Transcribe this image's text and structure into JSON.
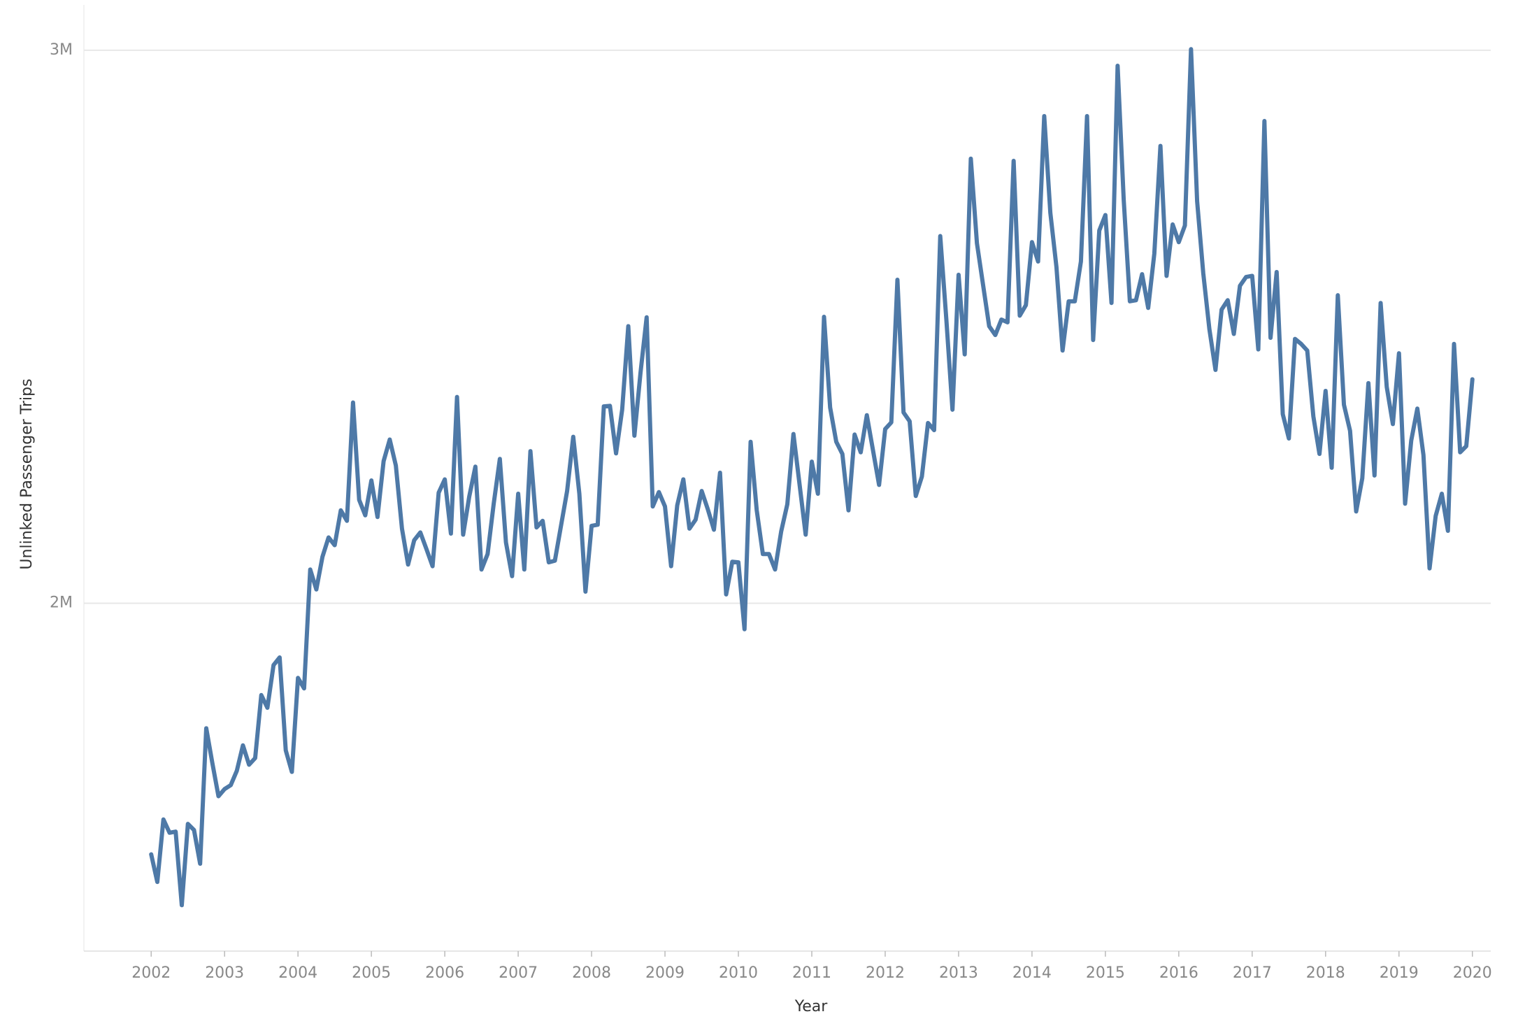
{
  "chart_data": {
    "type": "line",
    "x_label": "Year",
    "y_label": "Unlinked Passenger Trips",
    "color": "#4e79a7",
    "grid": true,
    "xlim": [
      "2001-02",
      "2020-04"
    ],
    "xticks": [
      2002,
      2003,
      2004,
      2005,
      2006,
      2007,
      2008,
      2009,
      2010,
      2011,
      2012,
      2013,
      2014,
      2015,
      2016,
      2017,
      2018,
      2019,
      2020
    ],
    "ylim": [
      1371000,
      3082000
    ],
    "yticks": [
      {
        "value": 2000000,
        "label": "2M"
      },
      {
        "value": 3000000,
        "label": "3M"
      }
    ],
    "x": [
      "2002-01",
      "2002-02",
      "2002-03",
      "2002-04",
      "2002-05",
      "2002-06",
      "2002-07",
      "2002-08",
      "2002-09",
      "2002-10",
      "2002-11",
      "2002-12",
      "2003-01",
      "2003-02",
      "2003-03",
      "2003-04",
      "2003-05",
      "2003-06",
      "2003-07",
      "2003-08",
      "2003-09",
      "2003-10",
      "2003-11",
      "2003-12",
      "2004-01",
      "2004-02",
      "2004-03",
      "2004-04",
      "2004-05",
      "2004-06",
      "2004-07",
      "2004-08",
      "2004-09",
      "2004-10",
      "2004-11",
      "2004-12",
      "2005-01",
      "2005-02",
      "2005-03",
      "2005-04",
      "2005-05",
      "2005-06",
      "2005-07",
      "2005-08",
      "2005-09",
      "2005-10",
      "2005-11",
      "2005-12",
      "2006-01",
      "2006-02",
      "2006-03",
      "2006-04",
      "2006-05",
      "2006-06",
      "2006-07",
      "2006-08",
      "2006-09",
      "2006-10",
      "2006-11",
      "2006-12",
      "2007-01",
      "2007-02",
      "2007-03",
      "2007-04",
      "2007-05",
      "2007-06",
      "2007-07",
      "2007-08",
      "2007-09",
      "2007-10",
      "2007-11",
      "2007-12",
      "2008-01",
      "2008-02",
      "2008-03",
      "2008-04",
      "2008-05",
      "2008-06",
      "2008-07",
      "2008-08",
      "2008-09",
      "2008-10",
      "2008-11",
      "2008-12",
      "2009-01",
      "2009-02",
      "2009-03",
      "2009-04",
      "2009-05",
      "2009-06",
      "2009-07",
      "2009-08",
      "2009-09",
      "2009-10",
      "2009-11",
      "2009-12",
      "2010-01",
      "2010-02",
      "2010-03",
      "2010-04",
      "2010-05",
      "2010-06",
      "2010-07",
      "2010-08",
      "2010-09",
      "2010-10",
      "2010-11",
      "2010-12",
      "2011-01",
      "2011-02",
      "2011-03",
      "2011-04",
      "2011-05",
      "2011-06",
      "2011-07",
      "2011-08",
      "2011-09",
      "2011-10",
      "2011-11",
      "2011-12",
      "2012-01",
      "2012-02",
      "2012-03",
      "2012-04",
      "2012-05",
      "2012-06",
      "2012-07",
      "2012-08",
      "2012-09",
      "2012-10",
      "2012-11",
      "2012-12",
      "2013-01",
      "2013-02",
      "2013-03",
      "2013-04",
      "2013-05",
      "2013-06",
      "2013-07",
      "2013-08",
      "2013-09",
      "2013-10",
      "2013-11",
      "2013-12",
      "2014-01",
      "2014-02",
      "2014-03",
      "2014-04",
      "2014-05",
      "2014-06",
      "2014-07",
      "2014-08",
      "2014-09",
      "2014-10",
      "2014-11",
      "2014-12",
      "2015-01",
      "2015-02",
      "2015-03",
      "2015-04",
      "2015-05",
      "2015-06",
      "2015-07",
      "2015-08",
      "2015-09",
      "2015-10",
      "2015-11",
      "2015-12",
      "2016-01",
      "2016-02",
      "2016-03",
      "2016-04",
      "2016-05",
      "2016-06",
      "2016-07",
      "2016-08",
      "2016-09",
      "2016-10",
      "2016-11",
      "2016-12",
      "2017-01",
      "2017-02",
      "2017-03",
      "2017-04",
      "2017-05",
      "2017-06",
      "2017-07",
      "2017-08",
      "2017-09",
      "2017-10",
      "2017-11",
      "2017-12",
      "2018-01",
      "2018-02",
      "2018-03",
      "2018-04",
      "2018-05",
      "2018-06",
      "2018-07",
      "2018-08",
      "2018-09",
      "2018-10",
      "2018-11",
      "2018-12",
      "2019-01",
      "2019-02",
      "2019-03",
      "2019-04",
      "2019-05",
      "2019-06",
      "2019-07",
      "2019-08",
      "2019-09",
      "2019-10",
      "2019-11",
      "2019-12",
      "2020-01"
    ],
    "values": [
      1546000,
      1496000,
      1609000,
      1585000,
      1587000,
      1454000,
      1601000,
      1590000,
      1529000,
      1774000,
      1711000,
      1651000,
      1664000,
      1671000,
      1697000,
      1743000,
      1708000,
      1720000,
      1834000,
      1811000,
      1888000,
      1902000,
      1734000,
      1695000,
      1865000,
      1846000,
      2061000,
      2025000,
      2084000,
      2119000,
      2105000,
      2168000,
      2149000,
      2363000,
      2187000,
      2159000,
      2222000,
      2156000,
      2257000,
      2296000,
      2249000,
      2135000,
      2070000,
      2114000,
      2128000,
      2098000,
      2067000,
      2200000,
      2224000,
      2126000,
      2373000,
      2124000,
      2193000,
      2247000,
      2061000,
      2089000,
      2180000,
      2261000,
      2110000,
      2049000,
      2198000,
      2061000,
      2275000,
      2137000,
      2149000,
      2074000,
      2077000,
      2140000,
      2203000,
      2301000,
      2198000,
      2021000,
      2140000,
      2142000,
      2356000,
      2357000,
      2271000,
      2350000,
      2501000,
      2303000,
      2417000,
      2517000,
      2175000,
      2201000,
      2175000,
      2067000,
      2177000,
      2224000,
      2135000,
      2151000,
      2203000,
      2170000,
      2133000,
      2236000,
      2016000,
      2075000,
      2074000,
      1953000,
      2292000,
      2168000,
      2089000,
      2089000,
      2061000,
      2130000,
      2179000,
      2306000,
      2215000,
      2124000,
      2256000,
      2198000,
      2518000,
      2354000,
      2292000,
      2270000,
      2168000,
      2305000,
      2273000,
      2340000,
      2277000,
      2214000,
      2315000,
      2327000,
      2585000,
      2345000,
      2329000,
      2194000,
      2229000,
      2326000,
      2313000,
      2664000,
      2513000,
      2350000,
      2594000,
      2450000,
      2804000,
      2651000,
      2576000,
      2501000,
      2485000,
      2513000,
      2508000,
      2800000,
      2520000,
      2539000,
      2653000,
      2618000,
      2881000,
      2706000,
      2608000,
      2457000,
      2546000,
      2546000,
      2618000,
      2881000,
      2476000,
      2674000,
      2702000,
      2543000,
      2972000,
      2729000,
      2546000,
      2548000,
      2595000,
      2534000,
      2632000,
      2827000,
      2592000,
      2685000,
      2653000,
      2683000,
      3002000,
      2727000,
      2597000,
      2496000,
      2422000,
      2531000,
      2548000,
      2487000,
      2574000,
      2590000,
      2592000,
      2459000,
      2872000,
      2480000,
      2599000,
      2342000,
      2298000,
      2478000,
      2469000,
      2457000,
      2338000,
      2270000,
      2384000,
      2245000,
      2557000,
      2359000,
      2312000,
      2166000,
      2226000,
      2398000,
      2231000,
      2543000,
      2391000,
      2324000,
      2452000,
      2180000,
      2294000,
      2352000,
      2268000,
      2063000,
      2158000,
      2198000,
      2131000,
      2469000,
      2273000,
      2284000,
      2405000
    ]
  }
}
